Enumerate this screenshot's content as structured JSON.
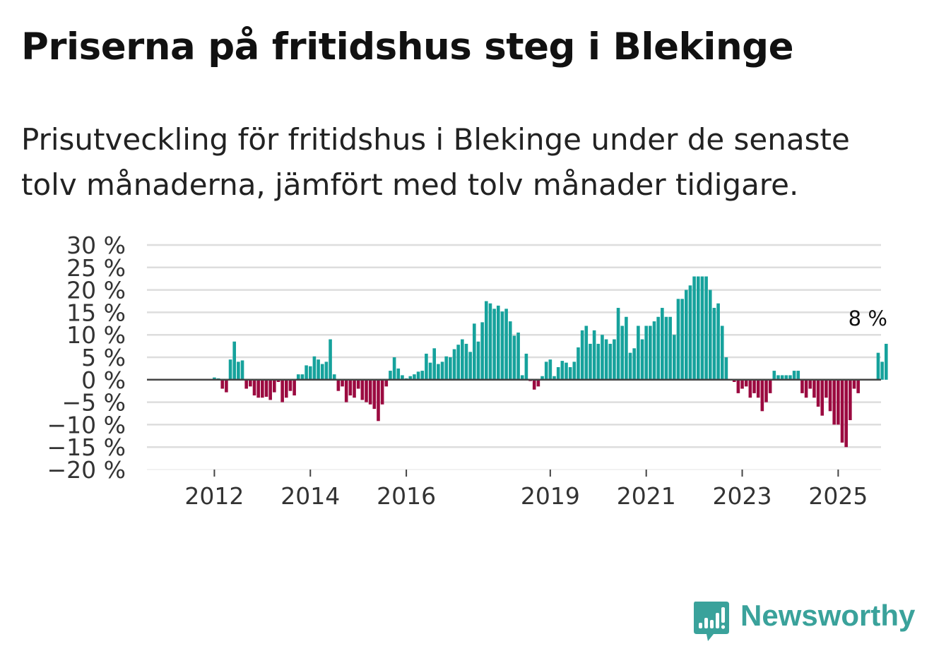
{
  "header": {
    "title": "Priserna på fritidshus steg i Blekinge",
    "subtitle": "Prisutveckling för fritidshus i Blekinge under de senaste tolv månaderna, jämfört med tolv månader tidigare."
  },
  "brand": {
    "name": "Newsworthy",
    "color": "#3aa29b"
  },
  "colors": {
    "positive": "#16a29c",
    "negative": "#9b0a40",
    "grid": "#dddddd",
    "zero_line": "#444444",
    "axis_text": "#333333"
  },
  "chart_data": {
    "type": "bar",
    "title": "Priserna på fritidshus steg i Blekinge",
    "ylabel": "",
    "xlabel": "",
    "ylim": [
      -20,
      30
    ],
    "y_ticks": [
      30,
      25,
      20,
      15,
      10,
      5,
      0,
      -5,
      -10,
      -15,
      -20
    ],
    "y_tick_labels": [
      "30 %",
      "25 %",
      "20 %",
      "15 %",
      "10 %",
      "5 %",
      "0 %",
      "−5 %",
      "−10 %",
      "−15 %",
      "−20 %"
    ],
    "x_tick_labels": [
      "2012",
      "2014",
      "2016",
      "2019",
      "2021",
      "2023",
      "2025"
    ],
    "x_tick_month_index": [
      12,
      36,
      60,
      96,
      120,
      144,
      168
    ],
    "grid": true,
    "end_annotation": "8 %",
    "series": [
      {
        "name": "Prisutveckling",
        "start": "2011-01",
        "values": [
          null,
          null,
          null,
          null,
          null,
          null,
          null,
          null,
          null,
          null,
          null,
          null,
          0.5,
          0.3,
          -2,
          -2.8,
          4.5,
          8.5,
          4,
          4.3,
          -2,
          -1.5,
          -3.5,
          -4,
          -4,
          -3.8,
          -4.5,
          -2.8,
          -0.5,
          -5,
          -4,
          -2.5,
          -3.5,
          1.2,
          1.2,
          3.2,
          3,
          5.2,
          4.5,
          3.5,
          4,
          9,
          1.2,
          -2.5,
          -1.5,
          -5,
          -3.5,
          -4,
          -2,
          -4.5,
          -5,
          -5.5,
          -6.5,
          -9.2,
          -5.5,
          -1.5,
          2,
          5,
          2.5,
          1,
          0.3,
          0.8,
          1.2,
          1.8,
          2,
          5.8,
          3.8,
          7,
          3.5,
          4,
          5.2,
          5,
          6.8,
          7.8,
          9,
          8,
          6.2,
          12.5,
          8.5,
          12.8,
          17.5,
          17,
          15.8,
          16.5,
          15.2,
          15.8,
          13,
          9.8,
          10.5,
          1,
          5.8,
          -0.3,
          -2.2,
          -1.5,
          0.8,
          4,
          4.5,
          0.8,
          2.8,
          4.2,
          3.8,
          2.8,
          4,
          7.2,
          11,
          12,
          8,
          11,
          8,
          10,
          9,
          8,
          9,
          16,
          12,
          14,
          6,
          7,
          12,
          9,
          12,
          12,
          13,
          14,
          16,
          14,
          14,
          10,
          18,
          18,
          20,
          21,
          23,
          23,
          23,
          23,
          20,
          16,
          17,
          12,
          5,
          null,
          -0.5,
          -3,
          -2,
          -1.5,
          -4,
          -3,
          -4,
          -7,
          -5,
          -3,
          2,
          1,
          1,
          1,
          1,
          2,
          2,
          -3,
          -4,
          -2,
          -4,
          -6,
          -8,
          -4,
          -7,
          -10,
          -10,
          -14,
          -15,
          -9,
          -2,
          -3,
          null,
          null,
          null,
          null,
          6,
          4,
          8
        ]
      }
    ]
  }
}
